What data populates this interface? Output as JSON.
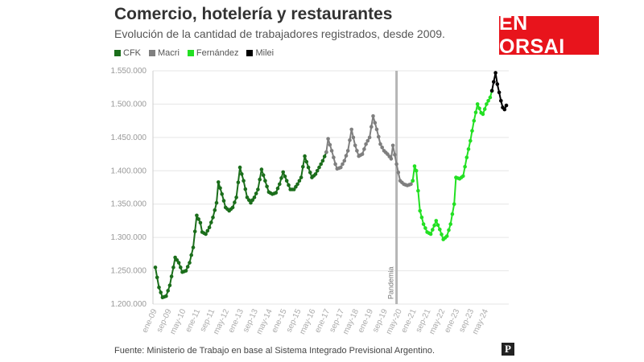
{
  "chart_data": {
    "type": "line",
    "title": "Comercio, hotelería y restaurantes",
    "subtitle": "Evolución de la cantidad de trabajadores registrados, desde 2009.",
    "ylim": [
      1200000,
      1550000
    ],
    "y_ticks": [
      1200000,
      1250000,
      1300000,
      1350000,
      1400000,
      1450000,
      1500000,
      1550000
    ],
    "y_tick_labels": [
      "1.200.000",
      "1.250.000",
      "1.300.000",
      "1.350.000",
      "1.400.000",
      "1.450.000",
      "1.500.000",
      "1.550.000"
    ],
    "x_tick_labels": [
      "ene-09",
      "sep-09",
      "may-10",
      "ene-11",
      "sep-11",
      "may-12",
      "ene-13",
      "sep-13",
      "may-14",
      "ene-15",
      "sep-15",
      "may-16",
      "ene-17",
      "sep-17",
      "may-18",
      "ene-19",
      "sep-19",
      "may-20",
      "ene-21",
      "sep-21",
      "may-22",
      "ene-23",
      "sep-23",
      "may-24"
    ],
    "grid": true,
    "legend_position": "top-left",
    "annotation": {
      "label": "Pandemia",
      "x": "mar-20"
    },
    "series": [
      {
        "name": "CFK",
        "color": "#1b6e1b",
        "points": [
          [
            "ene-09",
            1255000
          ],
          [
            "mar-09",
            1225000
          ],
          [
            "may-09",
            1210000
          ],
          [
            "jul-09",
            1212000
          ],
          [
            "sep-09",
            1228000
          ],
          [
            "nov-09",
            1255000
          ],
          [
            "dic-09",
            1270000
          ],
          [
            "feb-10",
            1262000
          ],
          [
            "abr-10",
            1248000
          ],
          [
            "jun-10",
            1250000
          ],
          [
            "ago-10",
            1262000
          ],
          [
            "oct-10",
            1285000
          ],
          [
            "dic-10",
            1333000
          ],
          [
            "feb-11",
            1322000
          ],
          [
            "mar-11",
            1308000
          ],
          [
            "may-11",
            1305000
          ],
          [
            "jul-11",
            1315000
          ],
          [
            "sep-11",
            1330000
          ],
          [
            "nov-11",
            1352000
          ],
          [
            "dic-11",
            1383000
          ],
          [
            "feb-12",
            1365000
          ],
          [
            "abr-12",
            1345000
          ],
          [
            "jun-12",
            1340000
          ],
          [
            "ago-12",
            1345000
          ],
          [
            "oct-12",
            1360000
          ],
          [
            "dic-12",
            1405000
          ],
          [
            "feb-13",
            1385000
          ],
          [
            "abr-13",
            1360000
          ],
          [
            "jun-13",
            1352000
          ],
          [
            "ago-13",
            1360000
          ],
          [
            "oct-13",
            1372000
          ],
          [
            "dic-13",
            1402000
          ],
          [
            "feb-14",
            1385000
          ],
          [
            "abr-14",
            1368000
          ],
          [
            "jun-14",
            1365000
          ],
          [
            "ago-14",
            1367000
          ],
          [
            "oct-14",
            1380000
          ],
          [
            "dic-14",
            1398000
          ],
          [
            "feb-15",
            1385000
          ],
          [
            "abr-15",
            1372000
          ],
          [
            "jun-15",
            1372000
          ],
          [
            "ago-15",
            1380000
          ],
          [
            "oct-15",
            1390000
          ],
          [
            "dic-15",
            1422000
          ],
          [
            "feb-16",
            1405000
          ],
          [
            "abr-16",
            1390000
          ],
          [
            "jun-16",
            1395000
          ],
          [
            "ago-16",
            1405000
          ],
          [
            "oct-16",
            1415000
          ],
          [
            "dic-16",
            1428000
          ]
        ]
      },
      {
        "name": "Macri",
        "color": "#7f7f7f",
        "points": [
          [
            "dic-16",
            1428000
          ],
          [
            "ene-17",
            1448000
          ],
          [
            "mar-17",
            1430000
          ],
          [
            "may-17",
            1410000
          ],
          [
            "jun-17",
            1403000
          ],
          [
            "ago-17",
            1405000
          ],
          [
            "oct-17",
            1415000
          ],
          [
            "dic-17",
            1430000
          ],
          [
            "feb-18",
            1462000
          ],
          [
            "abr-18",
            1438000
          ],
          [
            "jun-18",
            1422000
          ],
          [
            "ago-18",
            1425000
          ],
          [
            "oct-18",
            1440000
          ],
          [
            "dic-18",
            1450000
          ],
          [
            "feb-19",
            1482000
          ],
          [
            "abr-19",
            1462000
          ],
          [
            "jun-19",
            1440000
          ],
          [
            "ago-19",
            1430000
          ],
          [
            "oct-19",
            1425000
          ],
          [
            "dic-19",
            1418000
          ],
          [
            "ene-20",
            1438000
          ],
          [
            "mar-20",
            1410000
          ],
          [
            "may-20",
            1385000
          ],
          [
            "jul-20",
            1380000
          ],
          [
            "sep-20",
            1378000
          ],
          [
            "nov-20",
            1380000
          ],
          [
            "dic-20",
            1385000
          ]
        ]
      },
      {
        "name": "Fernández",
        "color": "#22e022",
        "points": [
          [
            "dic-20",
            1385000
          ],
          [
            "ene-21",
            1407000
          ],
          [
            "feb-21",
            1400000
          ],
          [
            "abr-21",
            1340000
          ],
          [
            "jun-21",
            1320000
          ],
          [
            "ago-21",
            1308000
          ],
          [
            "oct-21",
            1305000
          ],
          [
            "dic-21",
            1318000
          ],
          [
            "ene-22",
            1325000
          ],
          [
            "mar-22",
            1312000
          ],
          [
            "may-22",
            1297000
          ],
          [
            "jul-22",
            1302000
          ],
          [
            "sep-22",
            1320000
          ],
          [
            "nov-22",
            1350000
          ],
          [
            "dic-22",
            1390000
          ],
          [
            "feb-23",
            1388000
          ],
          [
            "abr-23",
            1392000
          ],
          [
            "jun-23",
            1420000
          ],
          [
            "ago-23",
            1445000
          ],
          [
            "oct-23",
            1475000
          ],
          [
            "dic-23",
            1500000
          ],
          [
            "feb-24",
            1487000
          ],
          [
            "mar-24",
            1485000
          ],
          [
            "may-24",
            1500000
          ],
          [
            "jul-24",
            1510000
          ],
          [
            "ago-24",
            1520000
          ]
        ]
      },
      {
        "name": "Milei",
        "color": "#000000",
        "points": [
          [
            "ago-24",
            1520000
          ],
          [
            "oct-24",
            1547000
          ],
          [
            "nov-24",
            1530000
          ],
          [
            "ene-25",
            1505000
          ],
          [
            "feb-25",
            1495000
          ],
          [
            "mar-25",
            1492000
          ],
          [
            "abr-25",
            1498000
          ]
        ]
      }
    ]
  },
  "badge_text": "EN ORSAI",
  "source_text": "Fuente: Ministerio de Trabajo en base al Sistema Integrado Previsional Argentino.",
  "logo_letter": "P",
  "colors": {
    "cfk": "#1b6e1b",
    "macri": "#7f7f7f",
    "fernandez": "#22e022",
    "milei": "#000000",
    "badge": "#e8141c"
  }
}
